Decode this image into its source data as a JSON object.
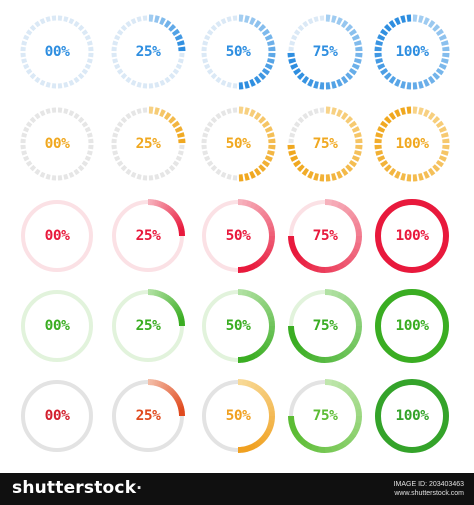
{
  "rows": [
    {
      "style": "dashed",
      "accent": "#2e8ee0",
      "accent_light": "#a8d0f2",
      "track": "#dbe9f6",
      "items": [
        {
          "label": "00%",
          "value": 0
        },
        {
          "label": "25%",
          "value": 25
        },
        {
          "label": "50%",
          "value": 50
        },
        {
          "label": "75%",
          "value": 75
        },
        {
          "label": "100%",
          "value": 100
        }
      ]
    },
    {
      "style": "dashed",
      "accent": "#f0a820",
      "accent_light": "#f8d48a",
      "track": "#e6e6e6",
      "items": [
        {
          "label": "00%",
          "value": 0
        },
        {
          "label": "25%",
          "value": 25
        },
        {
          "label": "50%",
          "value": 50
        },
        {
          "label": "75%",
          "value": 75
        },
        {
          "label": "100%",
          "value": 100
        }
      ]
    },
    {
      "style": "solid",
      "accent": "#e8193c",
      "accent_light": "#f7b8c2",
      "track": "#fbe1e5",
      "items": [
        {
          "label": "00%",
          "value": 0
        },
        {
          "label": "25%",
          "value": 25
        },
        {
          "label": "50%",
          "value": 50
        },
        {
          "label": "75%",
          "value": 75
        },
        {
          "label": "100%",
          "value": 100
        }
      ]
    },
    {
      "style": "solid",
      "accent": "#3aad22",
      "accent_light": "#b6e3a8",
      "track": "#e2f3dc",
      "items": [
        {
          "label": "00%",
          "value": 0
        },
        {
          "label": "25%",
          "value": 25
        },
        {
          "label": "50%",
          "value": 50
        },
        {
          "label": "75%",
          "value": 75
        },
        {
          "label": "100%",
          "value": 100
        }
      ]
    },
    {
      "style": "multicolor",
      "track": "#e3e3e3",
      "items": [
        {
          "label": "00%",
          "value": 0,
          "color": "#d21f2d",
          "color_light": "#f0b0b0"
        },
        {
          "label": "25%",
          "value": 25,
          "color": "#e04a1e",
          "color_light": "#f4c2ae"
        },
        {
          "label": "50%",
          "value": 50,
          "color": "#f0a020",
          "color_light": "#f8dc9c"
        },
        {
          "label": "75%",
          "value": 75,
          "color": "#5cbc34",
          "color_light": "#c4e8b2"
        },
        {
          "label": "100%",
          "value": 100,
          "color": "#34a32a",
          "color_light": "#a8dca0"
        }
      ]
    }
  ],
  "footer": {
    "brand": "shutterstock",
    "brand_mark": "·",
    "image_id": "IMAGE ID: 203403463",
    "site": "www.shutterstock.com"
  }
}
